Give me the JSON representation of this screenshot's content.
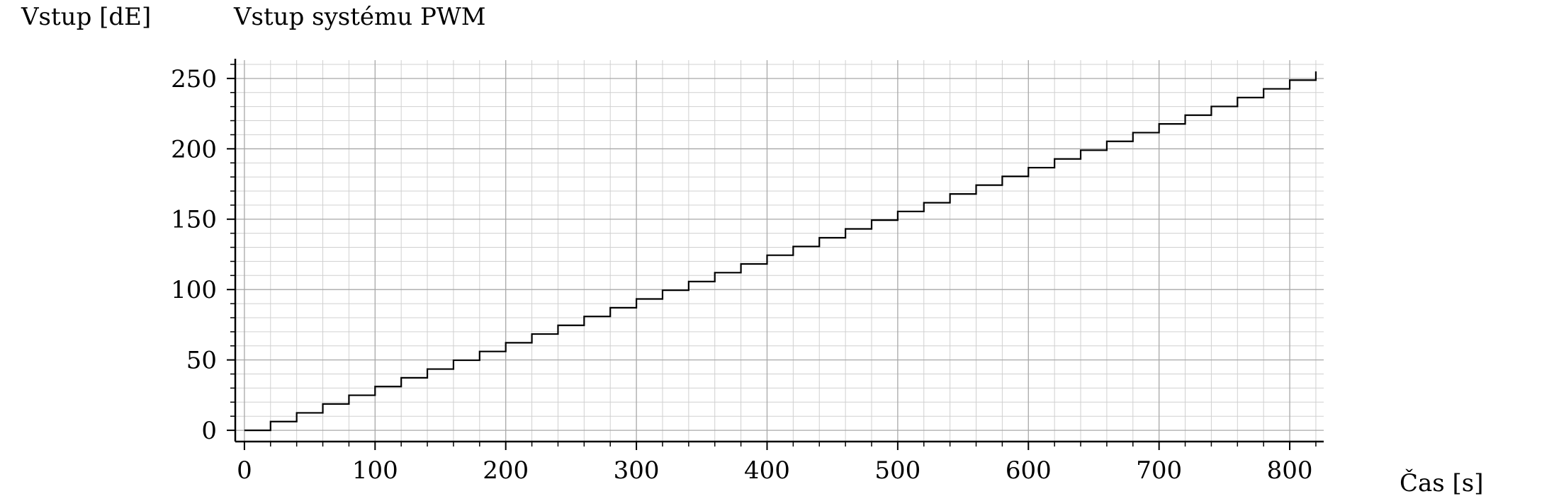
{
  "chart_data": {
    "type": "line",
    "step": "post",
    "title": "Vstup systému PWM",
    "xlabel": "Čas [s]",
    "ylabel": "Vstup [dE]",
    "xlim": [
      -7,
      826
    ],
    "ylim": [
      -8,
      263
    ],
    "xticks": [
      0,
      100,
      200,
      300,
      400,
      500,
      600,
      700,
      800
    ],
    "yticks": [
      0,
      50,
      100,
      150,
      200,
      250
    ],
    "grid": true,
    "series": [
      {
        "name": "",
        "color": "#000000",
        "x": [
          0,
          20,
          40,
          60,
          80,
          100,
          120,
          140,
          160,
          180,
          200,
          220,
          240,
          260,
          280,
          300,
          320,
          340,
          360,
          380,
          400,
          420,
          440,
          460,
          480,
          500,
          520,
          540,
          560,
          580,
          600,
          620,
          640,
          660,
          680,
          700,
          720,
          740,
          760,
          780,
          800,
          820
        ],
        "y": [
          0,
          6.2,
          12.4,
          18.7,
          24.9,
          31.1,
          37.3,
          43.5,
          49.8,
          56.0,
          62.2,
          68.4,
          74.6,
          80.9,
          87.1,
          93.3,
          99.5,
          105.7,
          112.0,
          118.2,
          124.4,
          130.6,
          136.8,
          143.1,
          149.3,
          155.5,
          161.7,
          167.9,
          174.2,
          180.4,
          186.6,
          192.8,
          199.0,
          205.3,
          211.5,
          217.7,
          223.9,
          230.1,
          236.4,
          242.6,
          248.8,
          255
        ]
      }
    ]
  }
}
